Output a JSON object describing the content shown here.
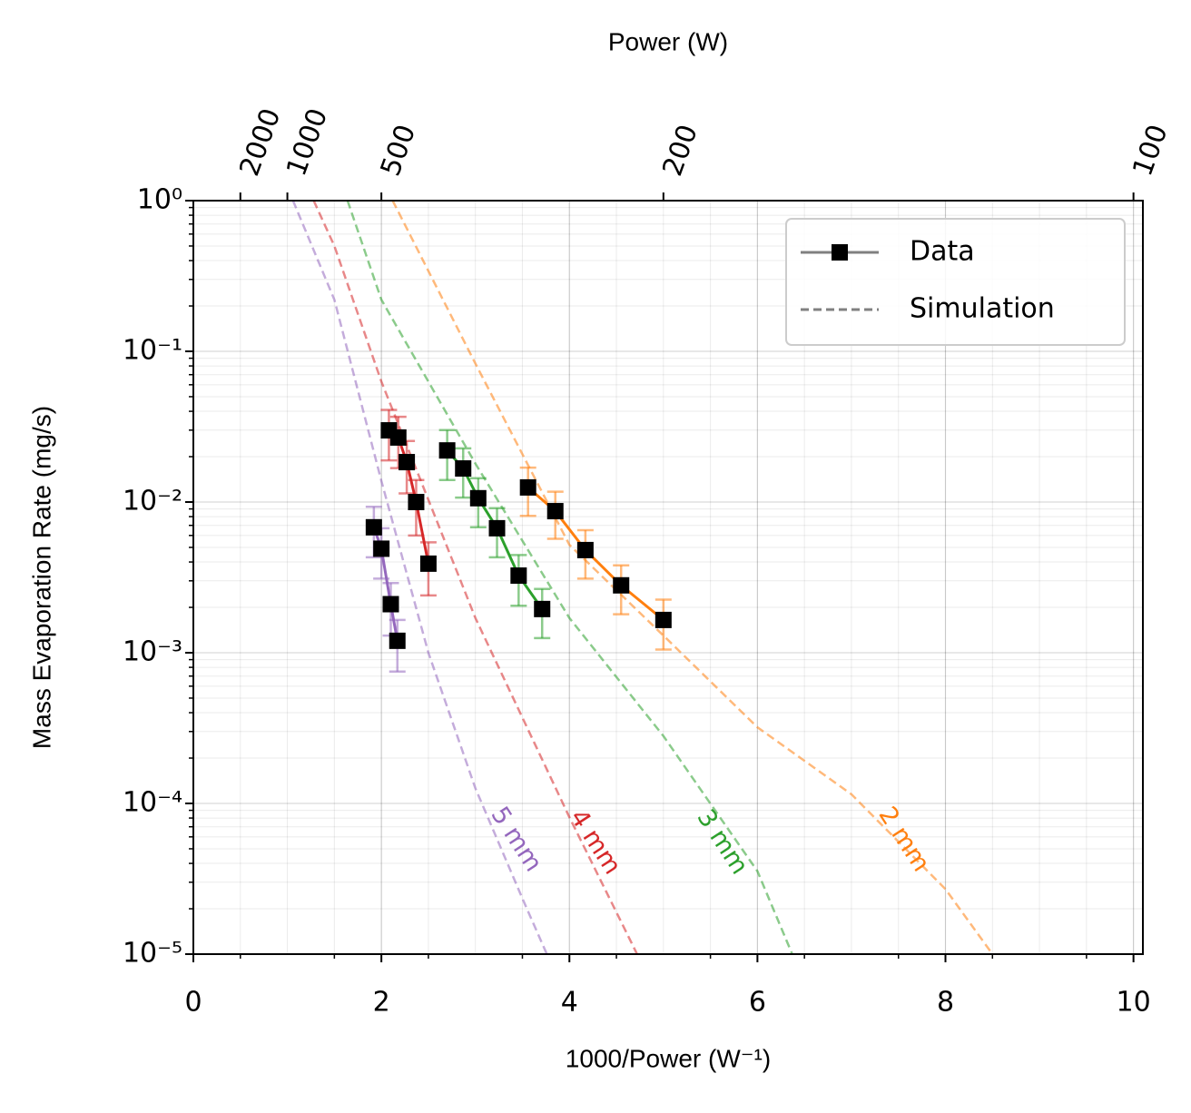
{
  "chart_data": {
    "type": "line",
    "xlabel": "1000/Power (W⁻¹)",
    "x2label": "Power (W)",
    "ylabel": "Mass Evaporation Rate (mg/s)",
    "xlim": [
      0,
      10.1
    ],
    "ylim": [
      1e-05,
      1
    ],
    "yscale": "log",
    "grid": true,
    "xticks": [
      0,
      2,
      4,
      6,
      8,
      10
    ],
    "x2ticks": [
      2000,
      1000,
      500,
      200,
      100
    ],
    "yticks": [
      {
        "value": 1e-05,
        "label": "10⁻⁵"
      },
      {
        "value": 0.0001,
        "label": "10⁻⁴"
      },
      {
        "value": 0.001,
        "label": "10⁻³"
      },
      {
        "value": 0.01,
        "label": "10⁻²"
      },
      {
        "value": 0.1,
        "label": "10⁻¹"
      },
      {
        "value": 1,
        "label": "10⁰"
      }
    ],
    "legend": {
      "loc": "upper right",
      "entries": [
        "Data",
        "Simulation"
      ]
    },
    "series": [
      {
        "name": "5 mm",
        "color": "#9467bd",
        "x": [
          1.92,
          2.0,
          2.1,
          2.17
        ],
        "values": [
          0.0068,
          0.0049,
          0.0021,
          0.0012
        ],
        "errors": [
          0.0025,
          0.0018,
          0.0008,
          0.00045
        ],
        "sim_x": [
          1.06,
          1.5,
          2.0,
          2.5,
          3.0,
          3.5,
          3.76
        ],
        "sim_values": [
          1,
          0.22,
          0.0138,
          0.001,
          0.000126,
          2.34e-05,
          1e-05
        ]
      },
      {
        "name": "4 mm",
        "color": "#d62728",
        "x": [
          2.08,
          2.18,
          2.27,
          2.37,
          2.5
        ],
        "values": [
          0.0299,
          0.0268,
          0.0184,
          0.01,
          0.0039
        ],
        "errors": [
          0.011,
          0.01,
          0.007,
          0.004,
          0.0015
        ],
        "sim_x": [
          1.28,
          1.5,
          2.0,
          3.0,
          4.0,
          4.72
        ],
        "sim_values": [
          1,
          0.5,
          0.063,
          0.0017,
          8.1e-05,
          1e-05
        ]
      },
      {
        "name": "3 mm",
        "color": "#2ca02c",
        "x": [
          2.7,
          2.87,
          3.03,
          3.23,
          3.46,
          3.71
        ],
        "values": [
          0.022,
          0.0167,
          0.0106,
          0.0067,
          0.00325,
          0.00195
        ],
        "errors": [
          0.008,
          0.006,
          0.0038,
          0.0024,
          0.0012,
          0.0007
        ],
        "sim_x": [
          1.64,
          2.0,
          3.0,
          4.0,
          5.0,
          6.0,
          6.37
        ],
        "sim_values": [
          1,
          0.22,
          0.018,
          0.0017,
          0.00028,
          3.55e-05,
          1e-05
        ]
      },
      {
        "name": "2 mm",
        "color": "#ff7f0e",
        "x": [
          3.56,
          3.85,
          4.17,
          4.55,
          5.0
        ],
        "values": [
          0.0125,
          0.0087,
          0.0048,
          0.0028,
          0.00165
        ],
        "errors": [
          0.0044,
          0.003,
          0.0017,
          0.001,
          0.0006
        ],
        "sim_x": [
          2.12,
          3.0,
          4.0,
          5.0,
          6.0,
          7.0,
          8.0,
          8.5
        ],
        "sim_values": [
          1,
          0.083,
          0.0052,
          0.0013,
          0.00032,
          0.000115,
          2.7e-05,
          1e-05
        ]
      }
    ]
  }
}
